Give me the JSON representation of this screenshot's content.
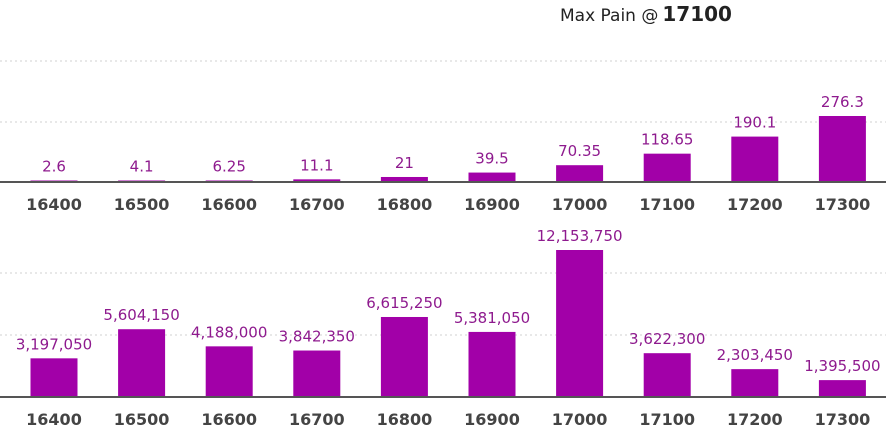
{
  "header": {
    "label": "Max Pain @",
    "strike": "17100"
  },
  "colors": {
    "bar": "#a200a8",
    "bar_label": "#8e1a8e",
    "axis_line": "#555555",
    "grid": "#d0d0d0",
    "tick_text": "#444444"
  },
  "chart_data": [
    {
      "type": "bar",
      "categories": [
        "16400",
        "16500",
        "16600",
        "16700",
        "16800",
        "16900",
        "17000",
        "17100",
        "17200",
        "17300"
      ],
      "values": [
        2.6,
        4.1,
        6.25,
        11.1,
        21,
        39.5,
        70.35,
        118.65,
        190.1,
        276.3
      ],
      "value_labels": [
        "2.6",
        "4.1",
        "6.25",
        "11.1",
        "21",
        "39.5",
        "70.35",
        "118.65",
        "190.1",
        "276.3"
      ],
      "title": "",
      "xlabel": "",
      "ylabel": "",
      "ylim": [
        0,
        276.3
      ],
      "grid": true,
      "legend": "none"
    },
    {
      "type": "bar",
      "categories": [
        "16400",
        "16500",
        "16600",
        "16700",
        "16800",
        "16900",
        "17000",
        "17100",
        "17200",
        "17300"
      ],
      "values": [
        3197050,
        5604150,
        4188000,
        3842350,
        6615250,
        5381050,
        12153750,
        3622300,
        2303450,
        1395500
      ],
      "value_labels": [
        "3,197,050",
        "5,604,150",
        "4,188,000",
        "3,842,350",
        "6,615,250",
        "5,381,050",
        "12,153,750",
        "3,622,300",
        "2,303,450",
        "1,395,500"
      ],
      "title": "",
      "xlabel": "",
      "ylabel": "",
      "ylim": [
        0,
        12153750
      ],
      "grid": true,
      "legend": "none"
    }
  ]
}
